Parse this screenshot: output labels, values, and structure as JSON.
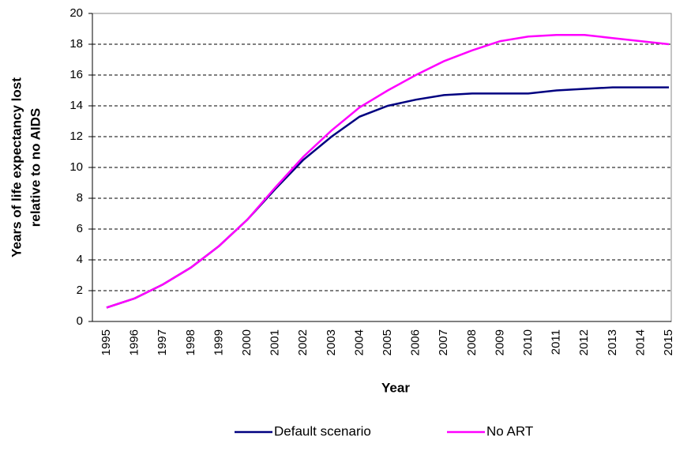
{
  "chart_data": {
    "type": "line",
    "ylabel": [
      "Years of life expectancy lost",
      "relative to no AIDS"
    ],
    "xlabel": "Year",
    "categories": [
      "1995",
      "1996",
      "1997",
      "1998",
      "1999",
      "2000",
      "2001",
      "2002",
      "2003",
      "2004",
      "2005",
      "2006",
      "2007",
      "2008",
      "2009",
      "2010",
      "2011",
      "2012",
      "2013",
      "2014",
      "2015"
    ],
    "series": [
      {
        "name": "Default scenario",
        "color": "#000080",
        "values": [
          0.9,
          1.5,
          2.4,
          3.5,
          4.9,
          6.6,
          8.6,
          10.5,
          12.0,
          13.3,
          14.0,
          14.4,
          14.7,
          14.8,
          14.8,
          14.8,
          15.0,
          15.1,
          15.2,
          15.2,
          15.2
        ]
      },
      {
        "name": "No ART",
        "color": "#ff00ff",
        "values": [
          0.9,
          1.5,
          2.4,
          3.5,
          4.9,
          6.6,
          8.7,
          10.7,
          12.4,
          13.9,
          15.0,
          16.0,
          16.9,
          17.6,
          18.2,
          18.5,
          18.6,
          18.6,
          18.4,
          18.2,
          18.0
        ]
      }
    ],
    "ylim": [
      0,
      20
    ],
    "yticks": [
      0,
      2,
      4,
      6,
      8,
      10,
      12,
      14,
      16,
      18,
      20
    ],
    "grid": true,
    "legend": "bottom"
  }
}
